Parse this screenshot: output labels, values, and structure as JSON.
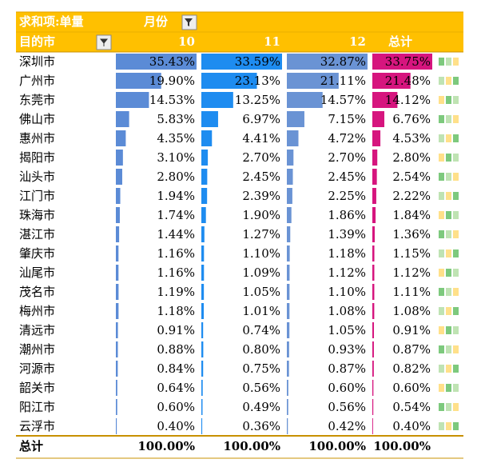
{
  "header": {
    "title": "求和项:单量",
    "column_field": "月份",
    "row_field": "目的市",
    "columns": [
      "10",
      "11",
      "12",
      "总计"
    ]
  },
  "table": {
    "rows": [
      {
        "city": "深圳市",
        "cells": [
          {
            "value": 35.43,
            "label": "35.43%"
          },
          {
            "value": 33.59,
            "label": "33.59%"
          },
          {
            "value": 32.87,
            "label": "32.87%"
          },
          {
            "value": 33.75,
            "label": "33.75%"
          }
        ]
      },
      {
        "city": "广州市",
        "cells": [
          {
            "value": 19.9,
            "label": "19.90%"
          },
          {
            "value": 23.13,
            "label": "23.13%"
          },
          {
            "value": 21.11,
            "label": "21.11%"
          },
          {
            "value": 21.48,
            "label": "21.48%"
          }
        ]
      },
      {
        "city": "东莞市",
        "cells": [
          {
            "value": 14.53,
            "label": "14.53%"
          },
          {
            "value": 13.25,
            "label": "13.25%"
          },
          {
            "value": 14.57,
            "label": "14.57%"
          },
          {
            "value": 14.12,
            "label": "14.12%"
          }
        ]
      },
      {
        "city": "佛山市",
        "cells": [
          {
            "value": 5.83,
            "label": "5.83%"
          },
          {
            "value": 6.97,
            "label": "6.97%"
          },
          {
            "value": 7.15,
            "label": "7.15%"
          },
          {
            "value": 6.76,
            "label": "6.76%"
          }
        ]
      },
      {
        "city": "惠州市",
        "cells": [
          {
            "value": 4.35,
            "label": "4.35%"
          },
          {
            "value": 4.41,
            "label": "4.41%"
          },
          {
            "value": 4.72,
            "label": "4.72%"
          },
          {
            "value": 4.53,
            "label": "4.53%"
          }
        ]
      },
      {
        "city": "揭阳市",
        "cells": [
          {
            "value": 3.1,
            "label": "3.10%"
          },
          {
            "value": 2.7,
            "label": "2.70%"
          },
          {
            "value": 2.7,
            "label": "2.70%"
          },
          {
            "value": 2.8,
            "label": "2.80%"
          }
        ]
      },
      {
        "city": "汕头市",
        "cells": [
          {
            "value": 2.8,
            "label": "2.80%"
          },
          {
            "value": 2.45,
            "label": "2.45%"
          },
          {
            "value": 2.45,
            "label": "2.45%"
          },
          {
            "value": 2.54,
            "label": "2.54%"
          }
        ]
      },
      {
        "city": "江门市",
        "cells": [
          {
            "value": 1.94,
            "label": "1.94%"
          },
          {
            "value": 2.39,
            "label": "2.39%"
          },
          {
            "value": 2.25,
            "label": "2.25%"
          },
          {
            "value": 2.22,
            "label": "2.22%"
          }
        ]
      },
      {
        "city": "珠海市",
        "cells": [
          {
            "value": 1.74,
            "label": "1.74%"
          },
          {
            "value": 1.9,
            "label": "1.90%"
          },
          {
            "value": 1.86,
            "label": "1.86%"
          },
          {
            "value": 1.84,
            "label": "1.84%"
          }
        ]
      },
      {
        "city": "湛江市",
        "cells": [
          {
            "value": 1.44,
            "label": "1.44%"
          },
          {
            "value": 1.27,
            "label": "1.27%"
          },
          {
            "value": 1.39,
            "label": "1.39%"
          },
          {
            "value": 1.36,
            "label": "1.36%"
          }
        ]
      },
      {
        "city": "肇庆市",
        "cells": [
          {
            "value": 1.16,
            "label": "1.16%"
          },
          {
            "value": 1.1,
            "label": "1.10%"
          },
          {
            "value": 1.18,
            "label": "1.18%"
          },
          {
            "value": 1.15,
            "label": "1.15%"
          }
        ]
      },
      {
        "city": "汕尾市",
        "cells": [
          {
            "value": 1.16,
            "label": "1.16%"
          },
          {
            "value": 1.09,
            "label": "1.09%"
          },
          {
            "value": 1.12,
            "label": "1.12%"
          },
          {
            "value": 1.12,
            "label": "1.12%"
          }
        ]
      },
      {
        "city": "茂名市",
        "cells": [
          {
            "value": 1.19,
            "label": "1.19%"
          },
          {
            "value": 1.05,
            "label": "1.05%"
          },
          {
            "value": 1.1,
            "label": "1.10%"
          },
          {
            "value": 1.11,
            "label": "1.11%"
          }
        ]
      },
      {
        "city": "梅州市",
        "cells": [
          {
            "value": 1.18,
            "label": "1.18%"
          },
          {
            "value": 1.01,
            "label": "1.01%"
          },
          {
            "value": 1.08,
            "label": "1.08%"
          },
          {
            "value": 1.08,
            "label": "1.08%"
          }
        ]
      },
      {
        "city": "清远市",
        "cells": [
          {
            "value": 0.91,
            "label": "0.91%"
          },
          {
            "value": 0.74,
            "label": "0.74%"
          },
          {
            "value": 1.05,
            "label": "1.05%"
          },
          {
            "value": 0.91,
            "label": "0.91%"
          }
        ]
      },
      {
        "city": "潮州市",
        "cells": [
          {
            "value": 0.88,
            "label": "0.88%"
          },
          {
            "value": 0.8,
            "label": "0.80%"
          },
          {
            "value": 0.93,
            "label": "0.93%"
          },
          {
            "value": 0.87,
            "label": "0.87%"
          }
        ]
      },
      {
        "city": "河源市",
        "cells": [
          {
            "value": 0.84,
            "label": "0.84%"
          },
          {
            "value": 0.75,
            "label": "0.75%"
          },
          {
            "value": 0.87,
            "label": "0.87%"
          },
          {
            "value": 0.82,
            "label": "0.82%"
          }
        ]
      },
      {
        "city": "韶关市",
        "cells": [
          {
            "value": 0.64,
            "label": "0.64%"
          },
          {
            "value": 0.56,
            "label": "0.56%"
          },
          {
            "value": 0.6,
            "label": "0.60%"
          },
          {
            "value": 0.6,
            "label": "0.60%"
          }
        ]
      },
      {
        "city": "阳江市",
        "cells": [
          {
            "value": 0.6,
            "label": "0.60%"
          },
          {
            "value": 0.49,
            "label": "0.49%"
          },
          {
            "value": 0.56,
            "label": "0.56%"
          },
          {
            "value": 0.54,
            "label": "0.54%"
          }
        ]
      },
      {
        "city": "云浮市",
        "cells": [
          {
            "value": 0.4,
            "label": "0.40%"
          },
          {
            "value": 0.36,
            "label": "0.36%"
          },
          {
            "value": 0.42,
            "label": "0.42%"
          },
          {
            "value": 0.4,
            "label": "0.40%"
          }
        ]
      }
    ],
    "total": {
      "label": "总计",
      "cells": [
        "100.00%",
        "100.00%",
        "100.00%",
        "100.00%"
      ]
    },
    "bar_colors": [
      "#5b8bd6",
      "#1e8cf0",
      "#6a93d4",
      "#d6157e"
    ]
  }
}
